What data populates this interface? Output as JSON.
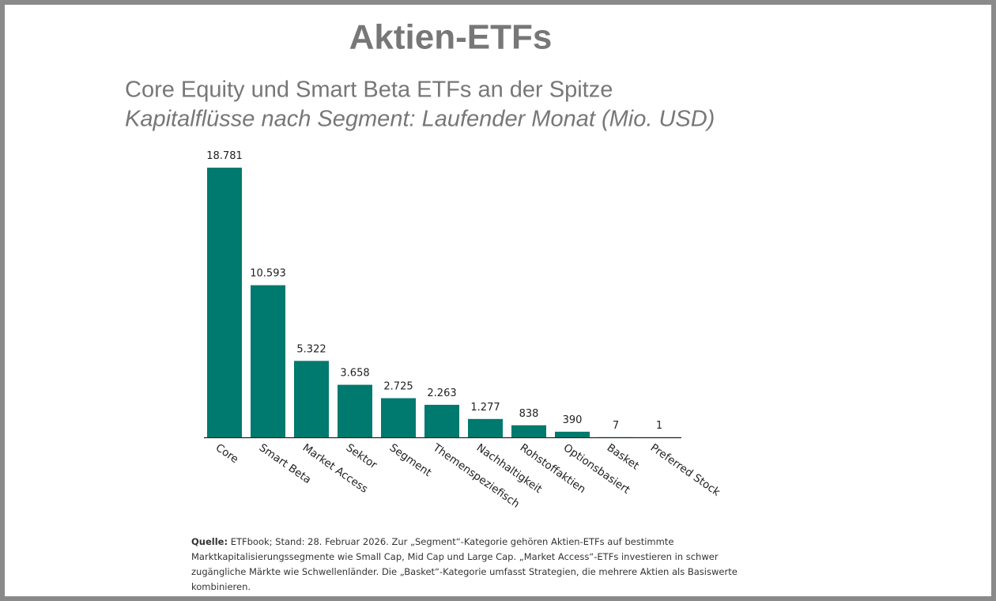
{
  "chart_data": {
    "type": "bar",
    "title": "Aktien-ETFs",
    "subtitle": "Core Equity und Smart Beta ETFs an der Spitze",
    "subtitle2": "Kapitalflüsse nach Segment: Laufender Monat (Mio. USD)",
    "categories": [
      "Core",
      "Smart Beta",
      "Market Access",
      "Sektor",
      "Segment",
      "Themenspeziefisch",
      "Nachhaltigkeit",
      "Rohstoffaktien",
      "Optionsbasiert",
      "Basket",
      "Preferred Stock"
    ],
    "values": [
      18781,
      10593,
      5322,
      3658,
      2725,
      2263,
      1277,
      838,
      390,
      7,
      1
    ],
    "value_labels": [
      "18.781",
      "10.593",
      "5.322",
      "3.658",
      "2.725",
      "2.263",
      "1.277",
      "838",
      "390",
      "7",
      "1"
    ],
    "color": "#00796e",
    "source_label": "Quelle:",
    "source_text": "ETFbook; Stand: 28. Februar 2026. Zur „Segment“-Kategorie gehören Aktien-ETFs auf bestimmte Marktkapitalisierungssegmente wie Small Cap, Mid Cap und Large Cap. „Market Access“-ETFs investieren in schwer zugängliche Märkte wie Schwellenländer. Die „Basket“-Kategorie umfasst Strategien, die mehrere Aktien als Basiswerte kombinieren."
  }
}
